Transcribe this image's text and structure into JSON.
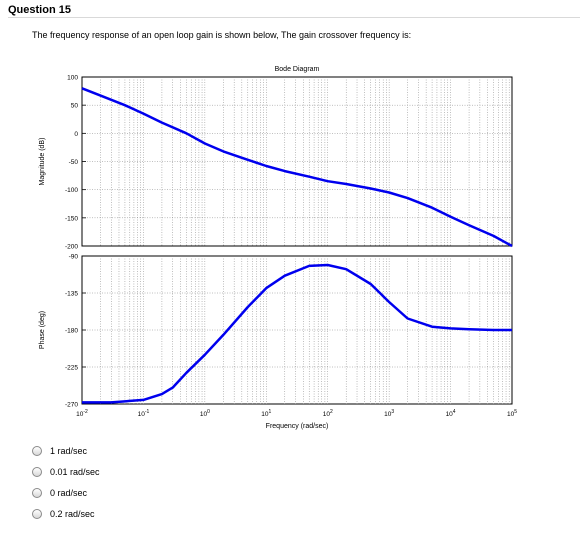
{
  "question": {
    "title": "Question 15",
    "text": "The frequency response of an open loop gain is shown below, The gain crossover frequency is:"
  },
  "options": [
    {
      "label": "1 rad/sec"
    },
    {
      "label": "0.01 rad/sec"
    },
    {
      "label": "0 rad/sec"
    },
    {
      "label": "0.2 rad/sec"
    }
  ],
  "chart_data": {
    "type": "line",
    "title": "Bode Diagram",
    "xlabel": "Frequency  (rad/sec)",
    "x_scale": "log",
    "xlim": [
      0.01,
      100000
    ],
    "x_ticks": [
      {
        "value": 0.01,
        "base": "10",
        "exp": "-2"
      },
      {
        "value": 0.1,
        "base": "10",
        "exp": "-1"
      },
      {
        "value": 1,
        "base": "10",
        "exp": "0"
      },
      {
        "value": 10,
        "base": "10",
        "exp": "1"
      },
      {
        "value": 100,
        "base": "10",
        "exp": "2"
      },
      {
        "value": 1000,
        "base": "10",
        "exp": "3"
      },
      {
        "value": 10000,
        "base": "10",
        "exp": "4"
      },
      {
        "value": 100000,
        "base": "10",
        "exp": "5"
      }
    ],
    "grid": true,
    "line_color": "#0000ee",
    "magnitude": {
      "ylabel": "Magnitude (dB)",
      "ylim": [
        -200,
        100
      ],
      "y_ticks": [
        100,
        50,
        0,
        -50,
        -100,
        -150,
        -200
      ],
      "x": [
        0.01,
        0.02,
        0.05,
        0.1,
        0.2,
        0.5,
        1,
        2,
        5,
        10,
        20,
        50,
        100,
        200,
        500,
        1000,
        2000,
        5000,
        10000,
        20000,
        50000,
        100000
      ],
      "y": [
        80,
        67,
        50,
        35,
        19,
        0,
        -18,
        -32,
        -47,
        -58,
        -67,
        -77,
        -85,
        -90,
        -98,
        -105,
        -115,
        -132,
        -148,
        -163,
        -182,
        -200
      ]
    },
    "phase": {
      "ylabel": "Phase (deg)",
      "ylim": [
        -270,
        -90
      ],
      "y_ticks": [
        -90,
        -135,
        -180,
        -225,
        -270
      ],
      "x": [
        0.01,
        0.03,
        0.1,
        0.2,
        0.3,
        0.5,
        1,
        2,
        5,
        10,
        20,
        50,
        100,
        200,
        500,
        1000,
        2000,
        5000,
        10000,
        20000,
        50000,
        100000
      ],
      "y": [
        -268,
        -268,
        -265,
        -258,
        -250,
        -232,
        -210,
        -186,
        -152,
        -129,
        -114,
        -102,
        -101,
        -106,
        -124,
        -146,
        -166,
        -176,
        -178,
        -179,
        -180,
        -180
      ]
    }
  }
}
